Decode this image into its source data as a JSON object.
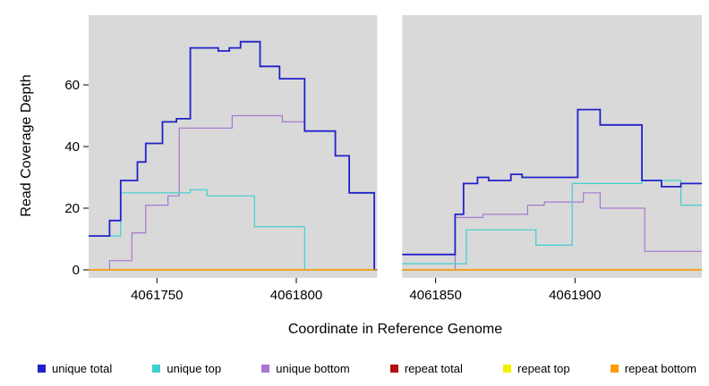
{
  "figure": {
    "background": "#ffffff"
  },
  "chart_data": {
    "type": "line",
    "subtype": "step",
    "title": "",
    "xlabel": "Coordinate in Reference Genome",
    "ylabel": "Read Coverage Depth",
    "xlim": [
      4061725.5,
      4061945.5
    ],
    "ylim": [
      -2.6,
      82.6
    ],
    "x_ticks": [
      4061750,
      4061800,
      4061850,
      4061900
    ],
    "y_ticks": [
      0,
      20,
      40,
      60
    ],
    "grid": false,
    "legend_position": "bottom",
    "panel_bg": "#d9d9d9",
    "gap": {
      "start": 4061829,
      "end": 4061838,
      "color": "#ffffff"
    },
    "legend_order": [
      "unique total",
      "unique top",
      "unique bottom",
      "repeat total",
      "repeat top",
      "repeat bottom"
    ],
    "draw_order": [
      "repeat total",
      "repeat top",
      "unique bottom",
      "unique top",
      "unique total",
      "repeat bottom"
    ],
    "series": [
      {
        "name": "unique total",
        "color": "#2121cc",
        "width": 1.8,
        "blocks": [
          {
            "points": [
              [
                4061725.5,
                11
              ],
              [
                4061733,
                16
              ],
              [
                4061737,
                29
              ],
              [
                4061743,
                35
              ],
              [
                4061746,
                41
              ],
              [
                4061752,
                48
              ],
              [
                4061757,
                49
              ],
              [
                4061762,
                72
              ],
              [
                4061772,
                71
              ],
              [
                4061776,
                72
              ],
              [
                4061780,
                74
              ],
              [
                4061787,
                66
              ],
              [
                4061794,
                62
              ],
              [
                4061803,
                45
              ],
              [
                4061814,
                37
              ],
              [
                4061819,
                25
              ],
              [
                4061828,
                0
              ]
            ],
            "end": 4061829
          },
          {
            "points": [
              [
                4061838,
                5
              ],
              [
                4061857,
                18
              ],
              [
                4061860,
                28
              ],
              [
                4061865,
                30
              ],
              [
                4061869,
                29
              ],
              [
                4061877,
                31
              ],
              [
                4061881,
                30
              ],
              [
                4061901,
                52
              ],
              [
                4061909,
                47
              ],
              [
                4061924,
                29
              ],
              [
                4061931,
                27
              ],
              [
                4061938,
                28
              ]
            ],
            "end": 4061945.5
          }
        ]
      },
      {
        "name": "unique top",
        "color": "#3ed0d0",
        "width": 1.2,
        "blocks": [
          {
            "points": [
              [
                4061725.5,
                11
              ],
              [
                4061737,
                25
              ],
              [
                4061762,
                26
              ],
              [
                4061768,
                24
              ],
              [
                4061785,
                14
              ],
              [
                4061803,
                0
              ]
            ],
            "end": 4061829
          },
          {
            "points": [
              [
                4061838,
                2
              ],
              [
                4061861,
                13
              ],
              [
                4061886,
                8
              ],
              [
                4061899,
                28
              ],
              [
                4061924,
                29
              ],
              [
                4061938,
                21
              ]
            ],
            "end": 4061945.5
          }
        ]
      },
      {
        "name": "unique bottom",
        "color": "#a678d2",
        "width": 1.2,
        "blocks": [
          {
            "points": [
              [
                4061725.5,
                0
              ],
              [
                4061733,
                3
              ],
              [
                4061741,
                12
              ],
              [
                4061746,
                21
              ],
              [
                4061754,
                24
              ],
              [
                4061758,
                46
              ],
              [
                4061777,
                50
              ],
              [
                4061795,
                48
              ],
              [
                4061803,
                45
              ],
              [
                4061814,
                37
              ],
              [
                4061819,
                25
              ],
              [
                4061828,
                0
              ]
            ],
            "end": 4061829
          },
          {
            "points": [
              [
                4061838,
                0
              ],
              [
                4061857,
                17
              ],
              [
                4061867,
                18
              ],
              [
                4061883,
                21
              ],
              [
                4061889,
                22
              ],
              [
                4061903,
                25
              ],
              [
                4061909,
                20
              ],
              [
                4061925,
                6
              ]
            ],
            "end": 4061945.5
          }
        ]
      },
      {
        "name": "repeat total",
        "color": "#b01010",
        "width": 1.2,
        "blocks": [
          {
            "points": [
              [
                4061725.5,
                0
              ]
            ],
            "end": 4061829
          },
          {
            "points": [
              [
                4061838,
                0
              ]
            ],
            "end": 4061945.5
          }
        ]
      },
      {
        "name": "repeat top",
        "color": "#f0f000",
        "width": 1.2,
        "blocks": [
          {
            "points": [
              [
                4061725.5,
                0
              ]
            ],
            "end": 4061829
          },
          {
            "points": [
              [
                4061838,
                0
              ]
            ],
            "end": 4061945.5
          }
        ]
      },
      {
        "name": "repeat bottom",
        "color": "#ff9d00",
        "width": 1.5,
        "blocks": [
          {
            "points": [
              [
                4061725.5,
                0
              ]
            ],
            "end": 4061829
          },
          {
            "points": [
              [
                4061838,
                0
              ]
            ],
            "end": 4061945.5
          }
        ]
      }
    ]
  }
}
